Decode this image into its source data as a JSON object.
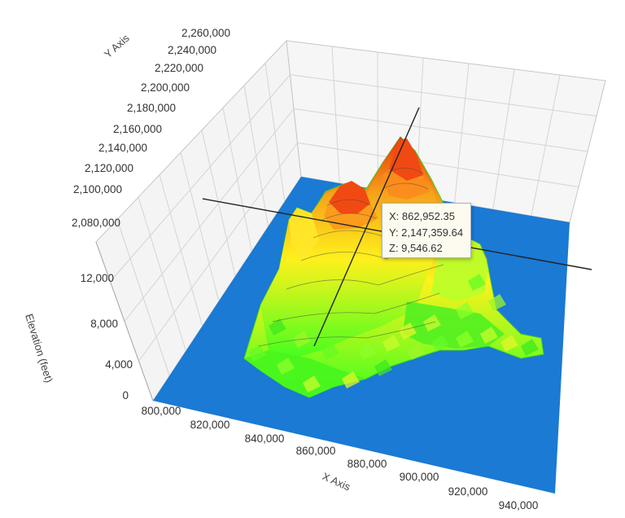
{
  "chart_data": {
    "type": "surface3d",
    "title": "",
    "x_axis": {
      "title": "X Axis",
      "ticks": [
        "800,000",
        "820,000",
        "840,000",
        "860,000",
        "880,000",
        "900,000",
        "920,000",
        "940,000"
      ],
      "range": [
        800000,
        940000
      ]
    },
    "y_axis": {
      "title": "Y Axis",
      "ticks": [
        "2,080,000",
        "2,100,000",
        "2,120,000",
        "2,140,000",
        "2,160,000",
        "2,180,000",
        "2,200,000",
        "2,220,000",
        "2,240,000",
        "2,260,000"
      ],
      "range": [
        2080000,
        2260000
      ]
    },
    "z_axis": {
      "title": "Elevation (feet)",
      "ticks": [
        "0",
        "4,000",
        "8,000",
        "12,000"
      ],
      "range": [
        0,
        14000
      ]
    },
    "peaks": [
      {
        "x": 862952,
        "y": 2147360,
        "z": 9547
      },
      {
        "x": 883000,
        "y": 2168000,
        "z": 9700
      }
    ],
    "colors": {
      "base": "#1a7ad4",
      "low": "#3dff1e",
      "mid": "#fff21c",
      "high": "#e8320c"
    },
    "grid": true,
    "tooltip": {
      "x": "X: 862,952.35",
      "y": "Y: 2,147,359.64",
      "z": "Z: 9,546.62"
    }
  }
}
